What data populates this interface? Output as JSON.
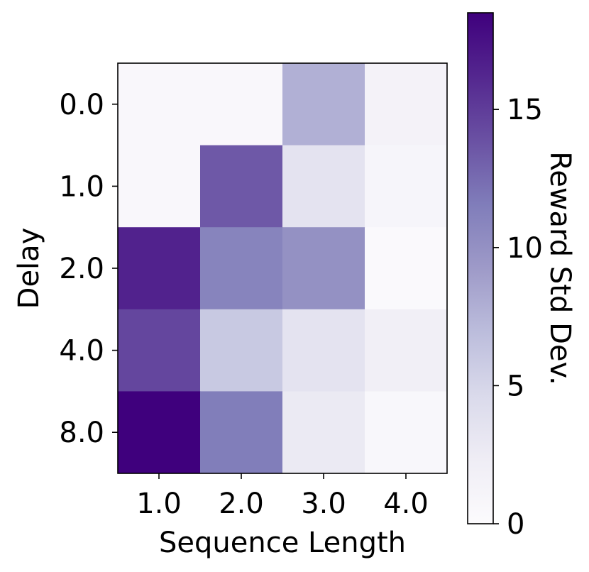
{
  "chart_data": {
    "type": "heatmap",
    "xlabel": "Sequence Length",
    "ylabel": "Delay",
    "x_categories": [
      "1.0",
      "2.0",
      "3.0",
      "4.0"
    ],
    "y_categories": [
      "0.0",
      "1.0",
      "2.0",
      "4.0",
      "8.0"
    ],
    "values": [
      [
        0.6,
        0.6,
        7.8,
        1.5
      ],
      [
        0.6,
        13.5,
        3.5,
        1.0
      ],
      [
        16.5,
        11.0,
        10.0,
        0.4
      ],
      [
        14.5,
        6.0,
        3.5,
        2.0
      ],
      [
        18.5,
        11.5,
        2.7,
        0.7
      ]
    ],
    "colorbar": {
      "label": "Reward Std Dev.",
      "min": 0,
      "max": 18.5,
      "ticks": [
        "0",
        "5",
        "10",
        "15"
      ],
      "tick_values": [
        0,
        5,
        10,
        15
      ],
      "colormap": "Purples"
    },
    "grid": false
  }
}
